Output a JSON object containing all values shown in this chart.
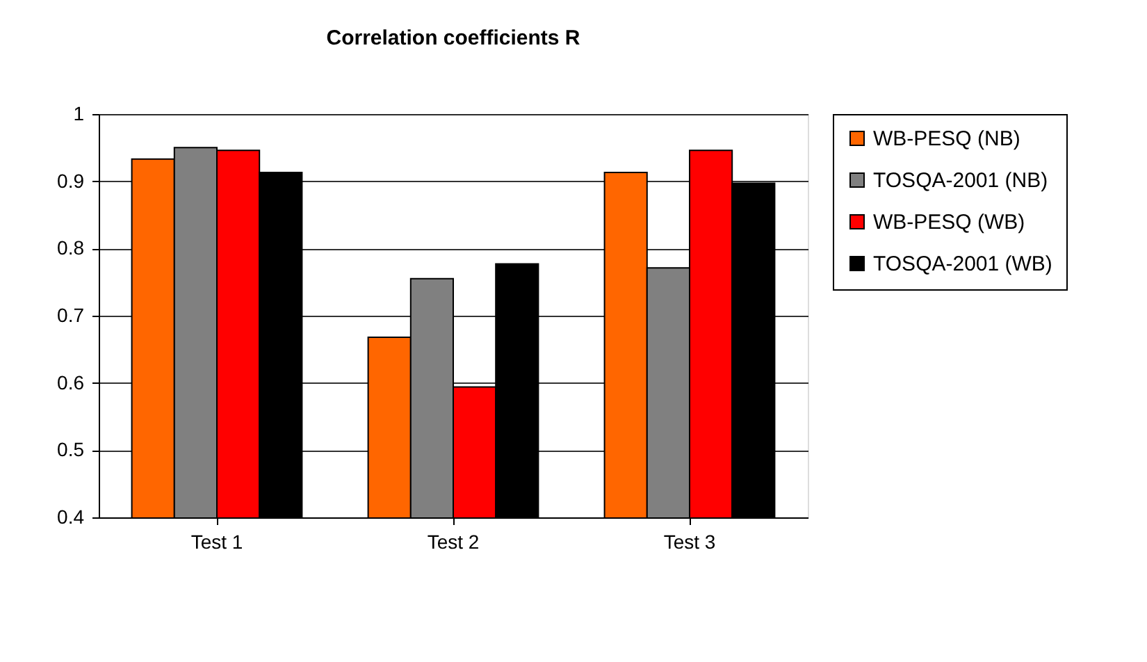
{
  "chart_data": {
    "type": "bar",
    "title": "Correlation coefficients R",
    "categories": [
      "Test 1",
      "Test 2",
      "Test 3"
    ],
    "series": [
      {
        "name": "WB-PESQ (NB)",
        "color": "#ff6600",
        "values": [
          0.933,
          0.668,
          0.913
        ]
      },
      {
        "name": "TOSQA-2001 (NB)",
        "color": "#808080",
        "values": [
          0.95,
          0.755,
          0.771
        ]
      },
      {
        "name": "WB-PESQ (WB)",
        "color": "#ff0000",
        "values": [
          0.946,
          0.594,
          0.946
        ]
      },
      {
        "name": "TOSQA-2001 (WB)",
        "color": "#000000",
        "values": [
          0.913,
          0.777,
          0.897
        ]
      }
    ],
    "ylim": [
      0.4,
      1
    ],
    "yticks": [
      0.4,
      0.5,
      0.6,
      0.7,
      0.8,
      0.9,
      {
        "value": 1,
        "label": "1"
      }
    ],
    "grid": "y",
    "legend": "right"
  }
}
